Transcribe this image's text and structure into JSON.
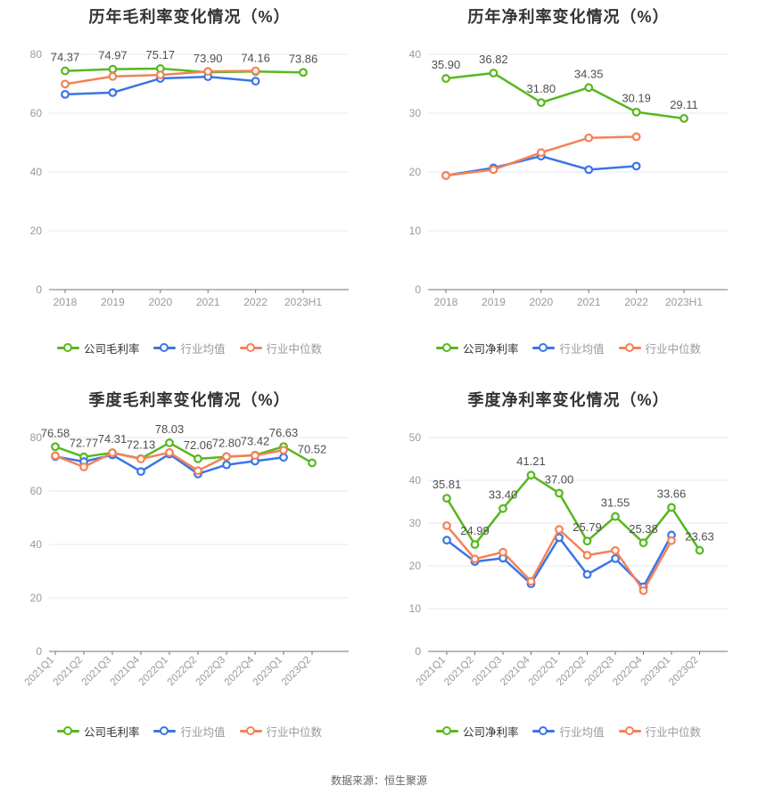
{
  "footer": {
    "source": "数据来源：恒生聚源"
  },
  "colors": {
    "company": "#57b71e",
    "industry_avg": "#3a75e6",
    "industry_median": "#f58157",
    "gridline": "#e3e9f2",
    "axis": "#717680",
    "tick_label": "#999999",
    "data_label": "#4f4f4f"
  },
  "chart_data": [
    {
      "type": "line",
      "title": "历年毛利率变化情况（%）",
      "categories": [
        "2018",
        "2019",
        "2020",
        "2021",
        "2022",
        "2023H1"
      ],
      "rotated_x": false,
      "ylim": [
        0,
        80
      ],
      "y_ticks": [
        0,
        20,
        40,
        60,
        80
      ],
      "grid": true,
      "legend_position": "bottom",
      "series": [
        {
          "key": "company-gross-margin",
          "name": "公司毛利率",
          "color_key": "company",
          "show_labels": true,
          "values": [
            74.37,
            74.97,
            75.17,
            73.9,
            74.16,
            73.86
          ]
        },
        {
          "key": "industry-average",
          "name": "行业均值",
          "color_key": "industry_avg",
          "show_labels": false,
          "values": [
            66.4,
            67.0,
            71.8,
            72.4,
            70.9,
            null
          ]
        },
        {
          "key": "industry-median",
          "name": "行业中位数",
          "color_key": "industry_median",
          "show_labels": false,
          "values": [
            69.9,
            72.5,
            73.0,
            74.2,
            74.4,
            null
          ]
        }
      ]
    },
    {
      "type": "line",
      "title": "历年净利率变化情况（%）",
      "categories": [
        "2018",
        "2019",
        "2020",
        "2021",
        "2022",
        "2023H1"
      ],
      "rotated_x": false,
      "ylim": [
        0,
        40
      ],
      "y_ticks": [
        0,
        10,
        20,
        30,
        40
      ],
      "grid": true,
      "legend_position": "bottom",
      "series": [
        {
          "key": "company-net-margin",
          "name": "公司净利率",
          "color_key": "company",
          "show_labels": true,
          "values": [
            35.9,
            36.82,
            31.8,
            34.35,
            30.19,
            29.11
          ]
        },
        {
          "key": "industry-average",
          "name": "行业均值",
          "color_key": "industry_avg",
          "show_labels": false,
          "values": [
            19.4,
            20.7,
            22.7,
            20.4,
            21.0,
            null
          ]
        },
        {
          "key": "industry-median",
          "name": "行业中位数",
          "color_key": "industry_median",
          "show_labels": false,
          "values": [
            19.4,
            20.4,
            23.3,
            25.8,
            26.0,
            null
          ]
        }
      ]
    },
    {
      "type": "line",
      "title": "季度毛利率变化情况（%）",
      "categories": [
        "2021Q1",
        "2021Q2",
        "2021Q3",
        "2021Q4",
        "2022Q1",
        "2022Q2",
        "2022Q3",
        "2022Q4",
        "2023Q1",
        "2023Q2"
      ],
      "rotated_x": true,
      "ylim": [
        0,
        80
      ],
      "y_ticks": [
        0,
        20,
        40,
        60,
        80
      ],
      "grid": true,
      "legend_position": "bottom",
      "series": [
        {
          "key": "company-gross-margin",
          "name": "公司毛利率",
          "color_key": "company",
          "show_labels": true,
          "values": [
            76.58,
            72.77,
            74.31,
            72.13,
            78.03,
            72.06,
            72.8,
            73.42,
            76.63,
            70.52
          ]
        },
        {
          "key": "industry-average",
          "name": "行业均值",
          "color_key": "industry_avg",
          "show_labels": false,
          "values": [
            72.9,
            71.0,
            73.5,
            67.3,
            73.8,
            66.4,
            69.8,
            71.2,
            72.6,
            null
          ]
        },
        {
          "key": "industry-median",
          "name": "行业中位数",
          "color_key": "industry_median",
          "show_labels": false,
          "values": [
            73.2,
            69.0,
            74.3,
            72.0,
            74.4,
            67.6,
            72.9,
            73.3,
            75.3,
            null
          ]
        }
      ]
    },
    {
      "type": "line",
      "title": "季度净利率变化情况（%）",
      "categories": [
        "2021Q1",
        "2021Q2",
        "2021Q3",
        "2021Q4",
        "2022Q1",
        "2022Q2",
        "2022Q3",
        "2022Q4",
        "2023Q1",
        "2023Q2"
      ],
      "rotated_x": true,
      "ylim": [
        0,
        50
      ],
      "y_ticks": [
        0,
        10,
        20,
        30,
        40,
        50
      ],
      "grid": true,
      "legend_position": "bottom",
      "series": [
        {
          "key": "company-net-margin",
          "name": "公司净利率",
          "color_key": "company",
          "show_labels": true,
          "values": [
            35.81,
            24.99,
            33.4,
            41.21,
            37.0,
            25.79,
            31.55,
            25.38,
            33.66,
            23.63
          ]
        },
        {
          "key": "industry-average",
          "name": "行业均值",
          "color_key": "industry_avg",
          "show_labels": false,
          "values": [
            26.0,
            21.0,
            21.8,
            15.8,
            26.6,
            18.0,
            21.7,
            15.1,
            27.2,
            null
          ]
        },
        {
          "key": "industry-median",
          "name": "行业中位数",
          "color_key": "industry_median",
          "show_labels": false,
          "values": [
            29.4,
            21.6,
            23.2,
            16.4,
            28.5,
            22.5,
            23.6,
            14.2,
            25.9,
            null
          ]
        }
      ]
    }
  ]
}
